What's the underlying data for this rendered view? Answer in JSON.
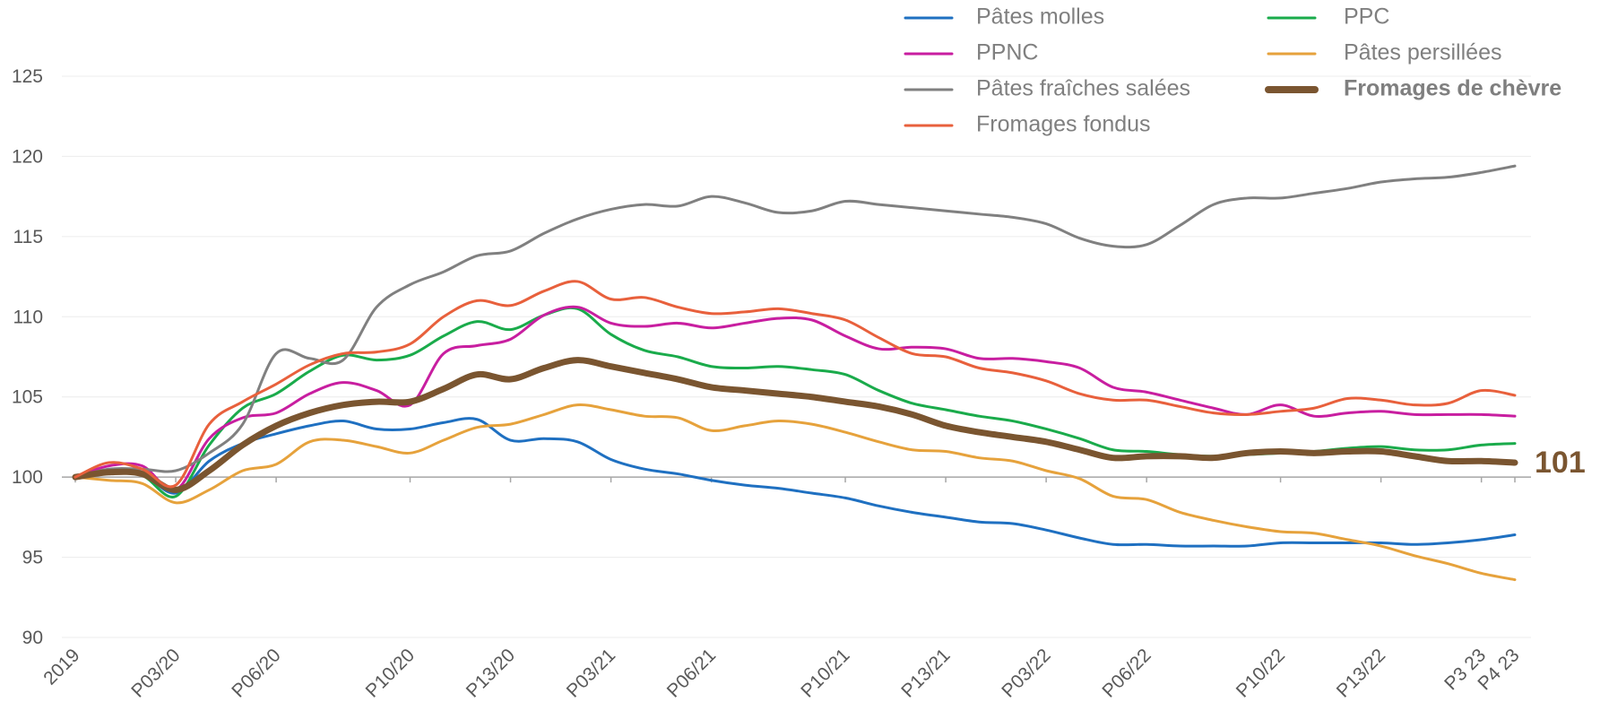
{
  "chart_data": {
    "type": "line",
    "categories": [
      "2019",
      null,
      null,
      "P03/20",
      null,
      null,
      "P06/20",
      null,
      null,
      null,
      "P10/20",
      null,
      null,
      "P13/20",
      null,
      null,
      "P03/21",
      null,
      null,
      "P06/21",
      null,
      null,
      null,
      "P10/21",
      null,
      null,
      "P13/21",
      null,
      null,
      "P03/22",
      null,
      null,
      "P06/22",
      null,
      null,
      null,
      "P10/22",
      null,
      null,
      "P13/22",
      null,
      null,
      "P3 23",
      "P4 23"
    ],
    "ylim": [
      90,
      125
    ],
    "yticks": [
      90,
      95,
      100,
      105,
      110,
      115,
      120,
      125
    ],
    "grid": true,
    "x_axis_crosses": 100,
    "smooth": true,
    "series": [
      {
        "name": "Pâtes molles",
        "color": "#1f70c1",
        "values": [
          100,
          100.4,
          100.2,
          99,
          101,
          102.1,
          102.7,
          103.2,
          103.5,
          103,
          103,
          103.4,
          103.6,
          102.3,
          102.4,
          102.2,
          101.1,
          100.5,
          100.2,
          99.8,
          99.5,
          99.3,
          99,
          98.7,
          98.2,
          97.8,
          97.5,
          97.2,
          97.1,
          96.7,
          96.2,
          95.8,
          95.8,
          95.7,
          95.7,
          95.7,
          95.9,
          95.9,
          95.9,
          95.9,
          95.8,
          95.9,
          96.1,
          96.4
        ]
      },
      {
        "name": "PPC",
        "color": "#1aab4b",
        "values": [
          100,
          100.3,
          100.1,
          98.8,
          102,
          104.3,
          105.2,
          106.6,
          107.6,
          107.3,
          107.6,
          108.8,
          109.7,
          109.2,
          110.1,
          110.5,
          108.9,
          107.9,
          107.5,
          106.9,
          106.8,
          106.9,
          106.7,
          106.4,
          105.4,
          104.6,
          104.2,
          103.8,
          103.5,
          103,
          102.4,
          101.7,
          101.6,
          101.4,
          101.3,
          101.4,
          101.5,
          101.6,
          101.8,
          101.9,
          101.7,
          101.7,
          102,
          102.1
        ]
      },
      {
        "name": "PPNC",
        "color": "#c81ea0",
        "values": [
          100,
          100.7,
          100.7,
          99.2,
          102.4,
          103.7,
          104,
          105.2,
          105.9,
          105.4,
          104.5,
          107.7,
          108.2,
          108.6,
          110.1,
          110.6,
          109.6,
          109.4,
          109.6,
          109.3,
          109.6,
          109.9,
          109.8,
          108.8,
          108,
          108.1,
          108,
          107.4,
          107.4,
          107.2,
          106.8,
          105.6,
          105.3,
          104.8,
          104.3,
          103.9,
          104.5,
          103.8,
          104,
          104.1,
          103.9,
          103.9,
          103.9,
          103.8
        ]
      },
      {
        "name": "Pâtes persillées",
        "color": "#e6a23c",
        "values": [
          100,
          99.8,
          99.6,
          98.4,
          99.2,
          100.4,
          100.8,
          102.2,
          102.3,
          101.9,
          101.5,
          102.3,
          103.1,
          103.3,
          103.9,
          104.5,
          104.2,
          103.8,
          103.7,
          102.9,
          103.2,
          103.5,
          103.3,
          102.8,
          102.2,
          101.7,
          101.6,
          101.2,
          101,
          100.4,
          99.9,
          98.8,
          98.6,
          97.8,
          97.3,
          96.9,
          96.6,
          96.5,
          96.1,
          95.7,
          95.1,
          94.6,
          94,
          93.6
        ]
      },
      {
        "name": "Pâtes fraîches salées",
        "color": "#808080",
        "values": [
          100,
          100.5,
          100.5,
          100.4,
          101.5,
          103.3,
          107.7,
          107.4,
          107.3,
          110.6,
          112,
          112.8,
          113.8,
          114.1,
          115.2,
          116.1,
          116.7,
          117,
          116.9,
          117.5,
          117.1,
          116.5,
          116.6,
          117.2,
          117,
          116.8,
          116.6,
          116.4,
          116.2,
          115.8,
          114.9,
          114.4,
          114.5,
          115.7,
          117,
          117.4,
          117.4,
          117.7,
          118,
          118.4,
          118.6,
          118.7,
          119,
          119.4
        ]
      },
      {
        "name": "Fromages de chèvre",
        "color": "#7a5530",
        "emphasis": true,
        "values": [
          100,
          100.3,
          100.2,
          99.2,
          100.4,
          102,
          103.2,
          104,
          104.5,
          104.7,
          104.7,
          105.5,
          106.4,
          106.1,
          106.8,
          107.3,
          106.9,
          106.5,
          106.1,
          105.6,
          105.4,
          105.2,
          105,
          104.7,
          104.4,
          103.9,
          103.2,
          102.8,
          102.5,
          102.2,
          101.7,
          101.2,
          101.3,
          101.3,
          101.2,
          101.5,
          101.6,
          101.5,
          101.6,
          101.6,
          101.3,
          101,
          101,
          100.9
        ],
        "value_labels": [
          null,
          null,
          null,
          null,
          null,
          null,
          null,
          null,
          null,
          null,
          null,
          null,
          null,
          null,
          null,
          null,
          null,
          null,
          null,
          null,
          null,
          null,
          null,
          null,
          null,
          null,
          null,
          null,
          null,
          null,
          null,
          null,
          null,
          null,
          null,
          null,
          null,
          null,
          null,
          null,
          null,
          null,
          null,
          "101"
        ]
      },
      {
        "name": "Fromages fondus",
        "color": "#e8603c",
        "values": [
          100,
          100.9,
          100.5,
          99.5,
          103.3,
          104.7,
          105.8,
          107,
          107.7,
          107.8,
          108.3,
          110,
          111,
          110.7,
          111.6,
          112.2,
          111.1,
          111.2,
          110.6,
          110.2,
          110.3,
          110.5,
          110.2,
          109.8,
          108.7,
          107.7,
          107.5,
          106.8,
          106.5,
          106,
          105.2,
          104.8,
          104.8,
          104.4,
          104,
          103.9,
          104.1,
          104.3,
          104.9,
          104.8,
          104.5,
          104.6,
          105.4,
          105.1
        ]
      }
    ]
  }
}
